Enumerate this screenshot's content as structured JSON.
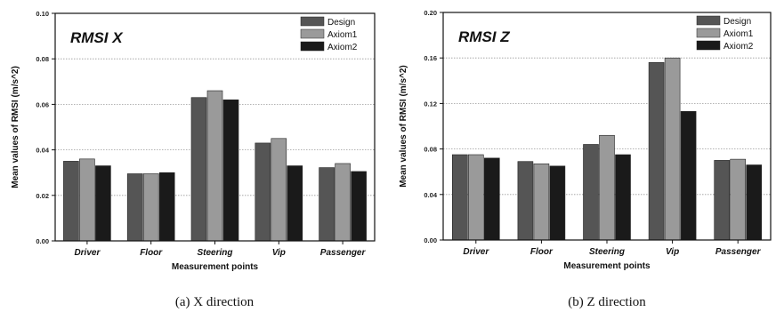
{
  "chart_data": [
    {
      "type": "bar",
      "title": "RMSI X",
      "caption": "(a) X direction",
      "xlabel": "Measurement points",
      "ylabel": "Mean values of RMSI (m/s^2)",
      "ylim": [
        0,
        0.1
      ],
      "yticks": [
        "0.00",
        "0.02",
        "0.04",
        "0.06",
        "0.08",
        "0.10"
      ],
      "categories": [
        "Driver",
        "Floor",
        "Steering",
        "Vip",
        "Passenger"
      ],
      "series": [
        {
          "name": "Design",
          "color": "#555555",
          "values": [
            0.035,
            0.0295,
            0.063,
            0.043,
            0.0322
          ]
        },
        {
          "name": "Axiom1",
          "color": "#9a9a9a",
          "values": [
            0.036,
            0.0295,
            0.066,
            0.045,
            0.034
          ]
        },
        {
          "name": "Axiom2",
          "color": "#1a1a1a",
          "values": [
            0.033,
            0.03,
            0.062,
            0.033,
            0.0305
          ]
        }
      ],
      "grid": true,
      "legend": "top-right"
    },
    {
      "type": "bar",
      "title": "RMSI Z",
      "caption": "(b) Z direction",
      "xlabel": "Measurement points",
      "ylabel": "Mean values of RMSI (m/s^2)",
      "ylim": [
        0,
        0.2
      ],
      "yticks": [
        "0.00",
        "0.04",
        "0.08",
        "0.12",
        "0.16",
        "0.20"
      ],
      "categories": [
        "Driver",
        "Floor",
        "Steering",
        "Vip",
        "Passenger"
      ],
      "series": [
        {
          "name": "Design",
          "color": "#555555",
          "values": [
            0.075,
            0.069,
            0.084,
            0.156,
            0.07
          ]
        },
        {
          "name": "Axiom1",
          "color": "#9a9a9a",
          "values": [
            0.075,
            0.067,
            0.092,
            0.16,
            0.071
          ]
        },
        {
          "name": "Axiom2",
          "color": "#1a1a1a",
          "values": [
            0.072,
            0.065,
            0.075,
            0.113,
            0.066
          ]
        }
      ],
      "grid": true,
      "legend": "top-right"
    }
  ]
}
